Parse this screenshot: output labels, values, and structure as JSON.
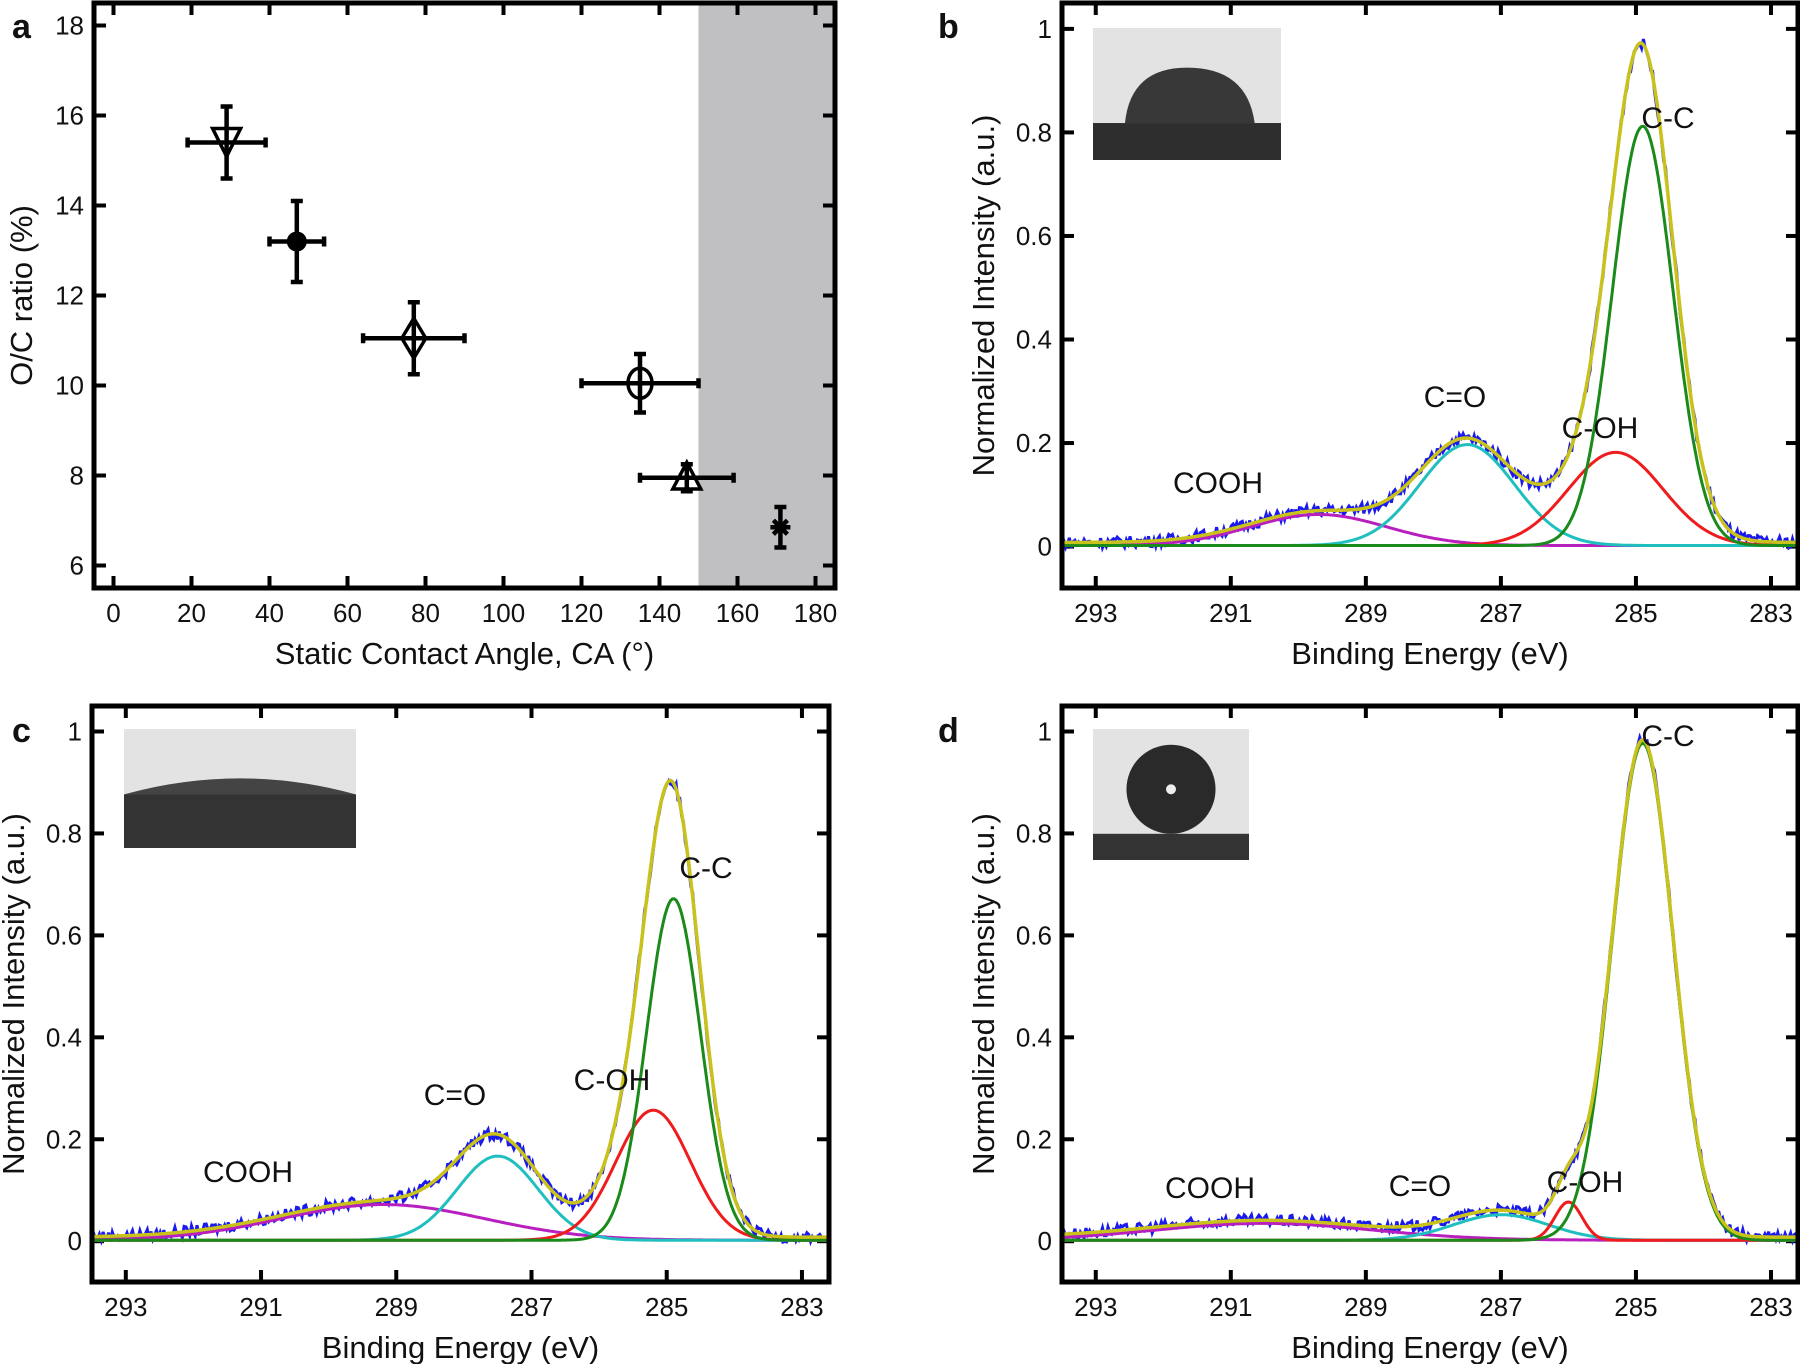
{
  "chart_data": [
    {
      "panel": "a",
      "type": "scatter",
      "xlabel": "Static Contact Angle, CA (°)",
      "ylabel": "O/C ratio (%)",
      "xlim": [
        -5,
        185
      ],
      "ylim": [
        5.5,
        18.5
      ],
      "xticks": [
        0,
        20,
        40,
        60,
        80,
        100,
        120,
        140,
        160,
        180
      ],
      "yticks": [
        6,
        8,
        10,
        12,
        14,
        16,
        18
      ],
      "shaded_region": {
        "x": [
          150,
          185
        ],
        "color": "#c0bfc1"
      },
      "points": [
        {
          "x": 29,
          "y": 15.4,
          "xerr": 10,
          "yerr": 0.8,
          "marker": "triangle-down"
        },
        {
          "x": 47,
          "y": 13.2,
          "xerr": 7,
          "yerr": 0.9,
          "marker": "circle-filled"
        },
        {
          "x": 77,
          "y": 11.05,
          "xerr": 13,
          "yerr": 0.8,
          "marker": "diamond"
        },
        {
          "x": 135,
          "y": 10.05,
          "xerr": 15,
          "yerr": 0.65,
          "marker": "circle"
        },
        {
          "x": 147,
          "y": 7.95,
          "xerr": 12,
          "yerr": 0.3,
          "marker": "triangle-up"
        },
        {
          "x": 171,
          "y": 6.85,
          "xerr": 0,
          "yerr": 0.45,
          "marker": "asterisk"
        }
      ]
    },
    {
      "panel": "b",
      "type": "line",
      "xlabel": "Binding Energy (eV)",
      "ylabel": "Normalized Intensity (a.u.)",
      "xlim": [
        293.5,
        282.6
      ],
      "ylim": [
        -0.08,
        1.05
      ],
      "xticks": [
        293,
        291,
        289,
        287,
        285,
        283
      ],
      "yticks": [
        0,
        0.2,
        0.4,
        0.6,
        0.8,
        1
      ],
      "ytick_labels": [
        "0",
        "0.2",
        "0.4",
        "0.6",
        "0.8",
        "1"
      ],
      "peaks": [
        {
          "name": "C-C",
          "center": 284.9,
          "height": 0.81,
          "sigma": 0.45,
          "color": "#1a8a1a"
        },
        {
          "name": "C-OH",
          "center": 285.3,
          "height": 0.18,
          "sigma": 0.7,
          "color": "#ee1c1c"
        },
        {
          "name": "C=O",
          "center": 287.5,
          "height": 0.195,
          "sigma": 0.7,
          "color": "#1fbfbf"
        },
        {
          "name": "COOH",
          "center": 289.7,
          "height": 0.06,
          "sigma": 1.0,
          "color": "#b81fbf"
        }
      ],
      "envelope_color": "#c8c21a",
      "data_color": "#1a1aee",
      "inset": "cap"
    },
    {
      "panel": "c",
      "type": "line",
      "xlabel": "Binding Energy (eV)",
      "ylabel": "Normalized Intensity (a.u.)",
      "xlim": [
        293.5,
        282.6
      ],
      "ylim": [
        -0.08,
        1.05
      ],
      "xticks": [
        293,
        291,
        289,
        287,
        285,
        283
      ],
      "yticks": [
        0,
        0.2,
        0.4,
        0.6,
        0.8,
        1
      ],
      "ytick_labels": [
        "0",
        "0.2",
        "0.4",
        "0.6",
        "0.8",
        "1"
      ],
      "peaks": [
        {
          "name": "C-C",
          "center": 284.9,
          "height": 0.67,
          "sigma": 0.4,
          "color": "#1a8a1a"
        },
        {
          "name": "C-OH",
          "center": 285.2,
          "height": 0.255,
          "sigma": 0.55,
          "color": "#ee1c1c"
        },
        {
          "name": "C=O",
          "center": 287.5,
          "height": 0.165,
          "sigma": 0.6,
          "color": "#1fbfbf"
        },
        {
          "name": "COOH",
          "center": 289.2,
          "height": 0.07,
          "sigma": 1.5,
          "color": "#b81fbf"
        }
      ],
      "envelope_color": "#c8c21a",
      "data_color": "#1a1aee",
      "inset": "flat"
    },
    {
      "panel": "d",
      "type": "line",
      "xlabel": "Binding Energy (eV)",
      "ylabel": "Normalized Intensity (a.u.)",
      "xlim": [
        293.5,
        282.6
      ],
      "ylim": [
        -0.08,
        1.05
      ],
      "xticks": [
        293,
        291,
        289,
        287,
        285,
        283
      ],
      "yticks": [
        0,
        0.2,
        0.4,
        0.6,
        0.8,
        1
      ],
      "ytick_labels": [
        "0",
        "0.2",
        "0.4",
        "0.6",
        "0.8",
        "1"
      ],
      "peaks": [
        {
          "name": "C-C",
          "center": 284.9,
          "height": 0.975,
          "sigma": 0.45,
          "color": "#1a8a1a"
        },
        {
          "name": "C-OH",
          "center": 286.0,
          "height": 0.075,
          "sigma": 0.2,
          "color": "#ee1c1c"
        },
        {
          "name": "C=O",
          "center": 287.0,
          "height": 0.05,
          "sigma": 0.7,
          "color": "#1fbfbf"
        },
        {
          "name": "COOH",
          "center": 290.5,
          "height": 0.033,
          "sigma": 1.6,
          "color": "#b81fbf"
        }
      ],
      "envelope_color": "#c8c21a",
      "data_color": "#1a1aee",
      "inset": "sphere"
    }
  ]
}
